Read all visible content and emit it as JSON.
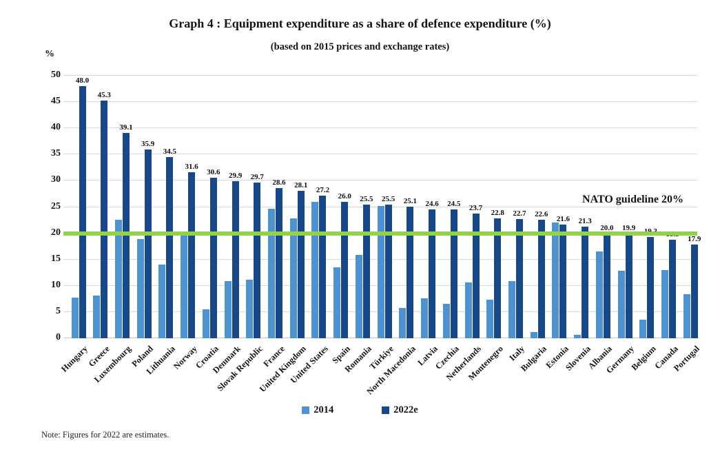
{
  "title": "Graph 4 : Equipment expenditure as a share of defence expenditure (%)",
  "subtitle": "(based on 2015 prices and exchange rates)",
  "y_axis_unit": "%",
  "note": "Note: Figures for 2022 are estimates.",
  "colors": {
    "series_2014": "#4d93d2",
    "series_2022e": "#17498a",
    "guideline_green": "#92d050",
    "gridline": "#d9d9d9"
  },
  "chart_data": {
    "type": "bar",
    "title": "Graph 4 : Equipment expenditure as a share of defence expenditure (%)",
    "subtitle": "(based on 2015 prices and exchange rates)",
    "xlabel": "",
    "ylabel": "%",
    "ylim": [
      0,
      50
    ],
    "ytick_step": 5,
    "grid": true,
    "legend_position": "bottom",
    "categories": [
      "Hungary",
      "Greece",
      "Luxembourg",
      "Poland",
      "Lithuania",
      "Norway",
      "Croatia",
      "Denmark",
      "Slovak Republic",
      "France",
      "United Kingdom",
      "United States",
      "Spain",
      "Romania",
      "Türkiye",
      "North Macedonia",
      "Latvia",
      "Czechia",
      "Netherlands",
      "Montenegro",
      "Italy",
      "Bulgaria",
      "Estonia",
      "Slovenia",
      "Albania",
      "Germany",
      "Belgium",
      "Canada",
      "Portugal"
    ],
    "series": [
      {
        "name": "2014",
        "color": "#4d93d2",
        "data_labels": false,
        "values": [
          7.7,
          8.1,
          22.6,
          18.9,
          14.1,
          19.8,
          5.5,
          10.9,
          11.1,
          24.7,
          22.8,
          26.0,
          13.5,
          15.9,
          25.2,
          5.8,
          7.6,
          6.5,
          10.6,
          7.4,
          10.9,
          1.2,
          22.1,
          0.7,
          16.6,
          12.9,
          3.6,
          13.0,
          8.4
        ]
      },
      {
        "name": "2022e",
        "color": "#17498a",
        "data_labels": true,
        "values": [
          48.0,
          45.3,
          39.1,
          35.9,
          34.5,
          31.6,
          30.6,
          29.9,
          29.7,
          28.6,
          28.1,
          27.2,
          26.0,
          25.5,
          25.5,
          25.1,
          24.6,
          24.5,
          23.7,
          22.8,
          22.7,
          22.6,
          21.6,
          21.3,
          20.0,
          19.9,
          19.3,
          18.8,
          17.9
        ]
      }
    ],
    "reference_line": {
      "value": 20,
      "color": "#92d050",
      "label": "NATO guideline 20%"
    }
  }
}
